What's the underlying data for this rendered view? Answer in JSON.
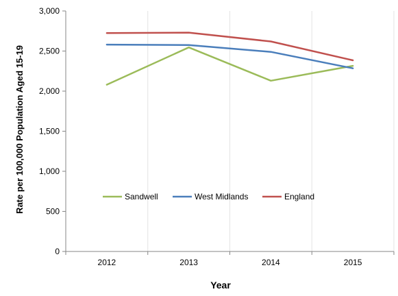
{
  "chart_data": {
    "type": "line",
    "categories": [
      "2012",
      "2013",
      "2014",
      "2015"
    ],
    "series": [
      {
        "name": "Sandwell",
        "values": [
          2080,
          2545,
          2130,
          2315
        ],
        "color": "#9bbb59"
      },
      {
        "name": "West Midlands",
        "values": [
          2580,
          2575,
          2490,
          2285
        ],
        "color": "#4a7ebb"
      },
      {
        "name": "England",
        "values": [
          2725,
          2730,
          2620,
          2385
        ],
        "color": "#c0504d"
      }
    ],
    "title": "",
    "xlabel": "Year",
    "ylabel": "Rate per 100,000 Population Aged 15-19",
    "ylim": [
      0,
      3000
    ],
    "yticks": [
      0,
      500,
      1000,
      1500,
      2000,
      2500,
      3000
    ],
    "ytick_labels": [
      "0",
      "500",
      "1,000",
      "1,500",
      "2,000",
      "2,500",
      "3,000"
    ],
    "grid": "vertical-light",
    "legend_position": "inside-lower-left"
  }
}
